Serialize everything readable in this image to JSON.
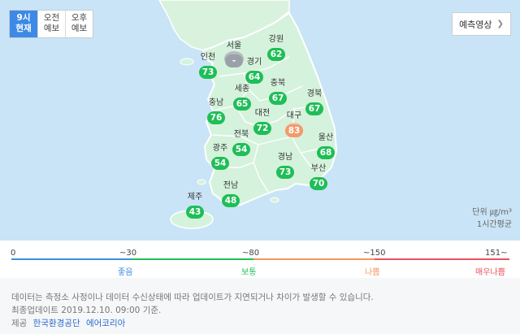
{
  "tabs": [
    {
      "line1": "9시",
      "line2": "현재",
      "active": true
    },
    {
      "line1": "오전",
      "line2": "예보",
      "active": false
    },
    {
      "line1": "오후",
      "line2": "예보",
      "active": false
    }
  ],
  "forecast_button": {
    "label": "예측영상",
    "icon": "chevron-right-icon"
  },
  "regions": [
    {
      "name": "서울",
      "value": "-",
      "status": "nodata"
    },
    {
      "name": "강원",
      "value": "62",
      "status": "good"
    },
    {
      "name": "인천",
      "value": "73",
      "status": "good"
    },
    {
      "name": "경기",
      "value": "64",
      "status": "good"
    },
    {
      "name": "세종",
      "value": "65",
      "status": "good"
    },
    {
      "name": "충북",
      "value": "67",
      "status": "good"
    },
    {
      "name": "경북",
      "value": "67",
      "status": "good"
    },
    {
      "name": "충남",
      "value": "76",
      "status": "good"
    },
    {
      "name": "대전",
      "value": "72",
      "status": "good"
    },
    {
      "name": "대구",
      "value": "83",
      "status": "bad"
    },
    {
      "name": "전북",
      "value": "54",
      "status": "good"
    },
    {
      "name": "울산",
      "value": "68",
      "status": "good"
    },
    {
      "name": "광주",
      "value": "54",
      "status": "good"
    },
    {
      "name": "경남",
      "value": "73",
      "status": "good"
    },
    {
      "name": "부산",
      "value": "70",
      "status": "good"
    },
    {
      "name": "전남",
      "value": "48",
      "status": "good"
    },
    {
      "name": "제주",
      "value": "43",
      "status": "good"
    }
  ],
  "unit": {
    "line1": "단위 ㎍/m³",
    "line2": "1시간평균"
  },
  "legend": {
    "ticks": [
      "0",
      "~30",
      "~80",
      "~150",
      "151~"
    ],
    "levels": [
      {
        "label": "좋음",
        "color": "#3b8fe0"
      },
      {
        "label": "보통",
        "color": "#1fbe57"
      },
      {
        "label": "나쁨",
        "color": "#f2965c"
      },
      {
        "label": "매우나쁨",
        "color": "#ec4f5c"
      }
    ]
  },
  "footer": {
    "notice": "데이터는 측정소 사정이나 데이터 수신상태에 따라 업데이트가 지연되거나 차이가 발생할 수 있습니다.",
    "updated": "최종업데이트 2019.12.10. 09:00 기준.",
    "source_prefix": "제공",
    "source_link1": "한국환경공단",
    "source_link2": "에어코리아"
  },
  "colors": {
    "sea": "#c9e4f6",
    "land": "#d5f2dc",
    "good": "#1fbe57",
    "bad": "#f29a6c",
    "active_tab": "#3c8ae6"
  }
}
